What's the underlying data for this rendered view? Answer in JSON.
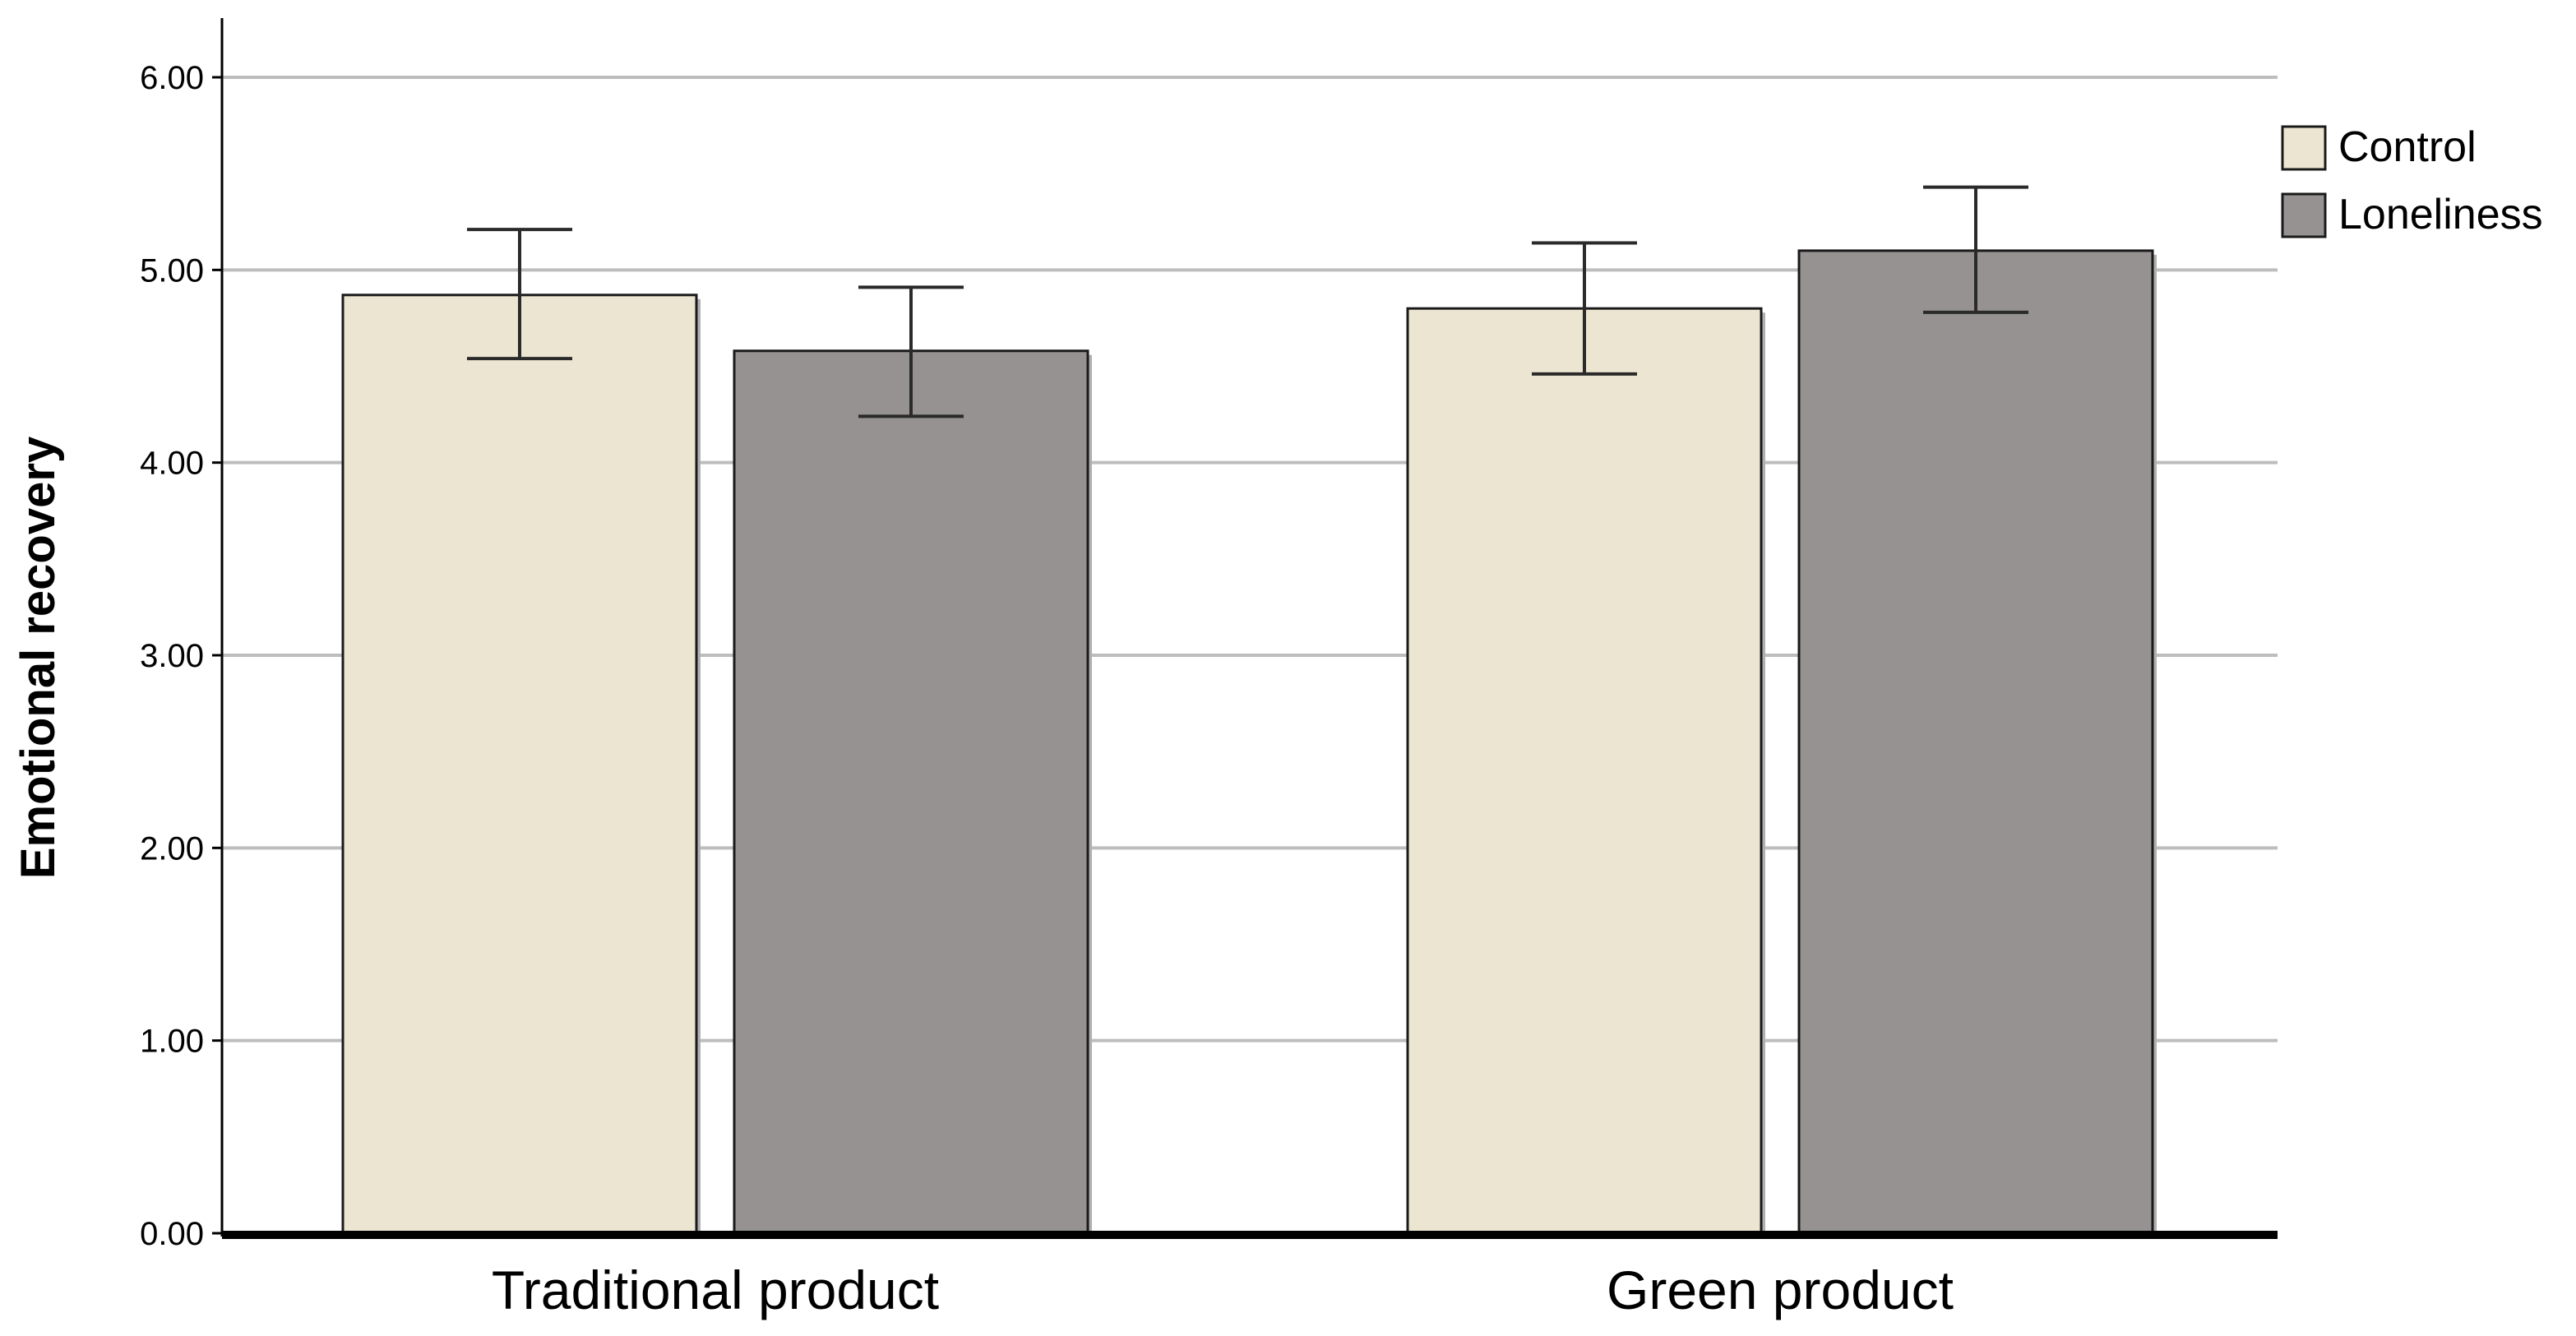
{
  "chart_data": {
    "type": "bar",
    "title": "",
    "xlabel": "",
    "ylabel": "Emotional recovery",
    "categories": [
      "Traditional product",
      "Green product"
    ],
    "series": [
      {
        "name": "Control",
        "color": "#ece5d1",
        "values": [
          4.87,
          4.8
        ],
        "error_low": [
          4.54,
          4.46
        ],
        "error_high": [
          5.21,
          5.14
        ]
      },
      {
        "name": "Loneliness",
        "color": "#959291",
        "values": [
          4.58,
          5.1
        ],
        "error_low": [
          4.24,
          4.78
        ],
        "error_high": [
          4.91,
          5.43
        ]
      }
    ],
    "ylim": [
      0,
      6
    ],
    "yticks": [
      0,
      1,
      2,
      3,
      4,
      5,
      6
    ],
    "ytick_labels": [
      "0.00",
      "1.00",
      "2.00",
      "3.00",
      "4.00",
      "5.00",
      "6.00"
    ],
    "grid": true,
    "legend_position": "top-right",
    "error_bars": true
  }
}
